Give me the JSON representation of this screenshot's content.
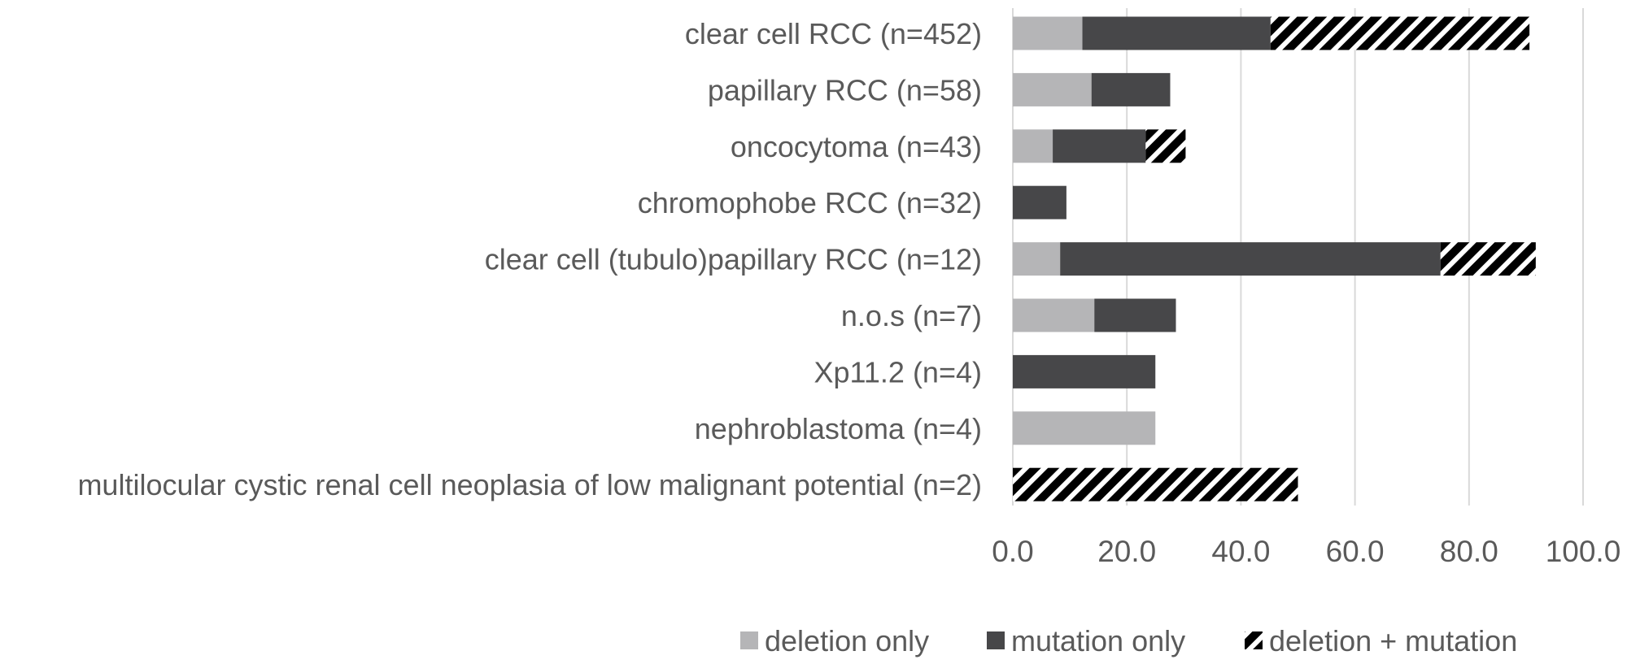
{
  "chart_data": {
    "type": "bar",
    "orientation": "horizontal",
    "stacked": true,
    "title": "",
    "xlabel": "",
    "ylabel": "",
    "xlim": [
      0,
      100
    ],
    "grid": true,
    "legend_position": "bottom",
    "ticks": [
      "0.0",
      "20.0",
      "40.0",
      "60.0",
      "80.0",
      "100.0"
    ],
    "tick_values": [
      0,
      20,
      40,
      60,
      80,
      100
    ],
    "categories": [
      "clear cell RCC (n=452)",
      "papillary RCC (n=58)",
      "oncocytoma (n=43)",
      "chromophobe RCC (n=32)",
      "clear cell (tubulo)papillary RCC (n=12)",
      "n.o.s (n=7)",
      "Xp11.2 (n=4)",
      "nephroblastoma (n=4)",
      "multilocular cystic renal cell neoplasia of low malignant potential (n=2)"
    ],
    "series": [
      {
        "name": "deletion only",
        "color": "#b5b5b7",
        "pattern": "solid",
        "values": [
          12.2,
          13.8,
          7.0,
          0,
          8.3,
          14.3,
          0,
          25.0,
          0
        ]
      },
      {
        "name": "mutation only",
        "color": "#474749",
        "pattern": "solid",
        "values": [
          33.0,
          13.8,
          16.3,
          9.4,
          66.7,
          14.3,
          25.0,
          0,
          0
        ]
      },
      {
        "name": "deletion + mutation",
        "color": "#000000",
        "pattern": "hatch",
        "values": [
          45.4,
          0,
          7.0,
          0,
          16.7,
          0,
          0,
          0,
          50.0
        ]
      }
    ]
  }
}
